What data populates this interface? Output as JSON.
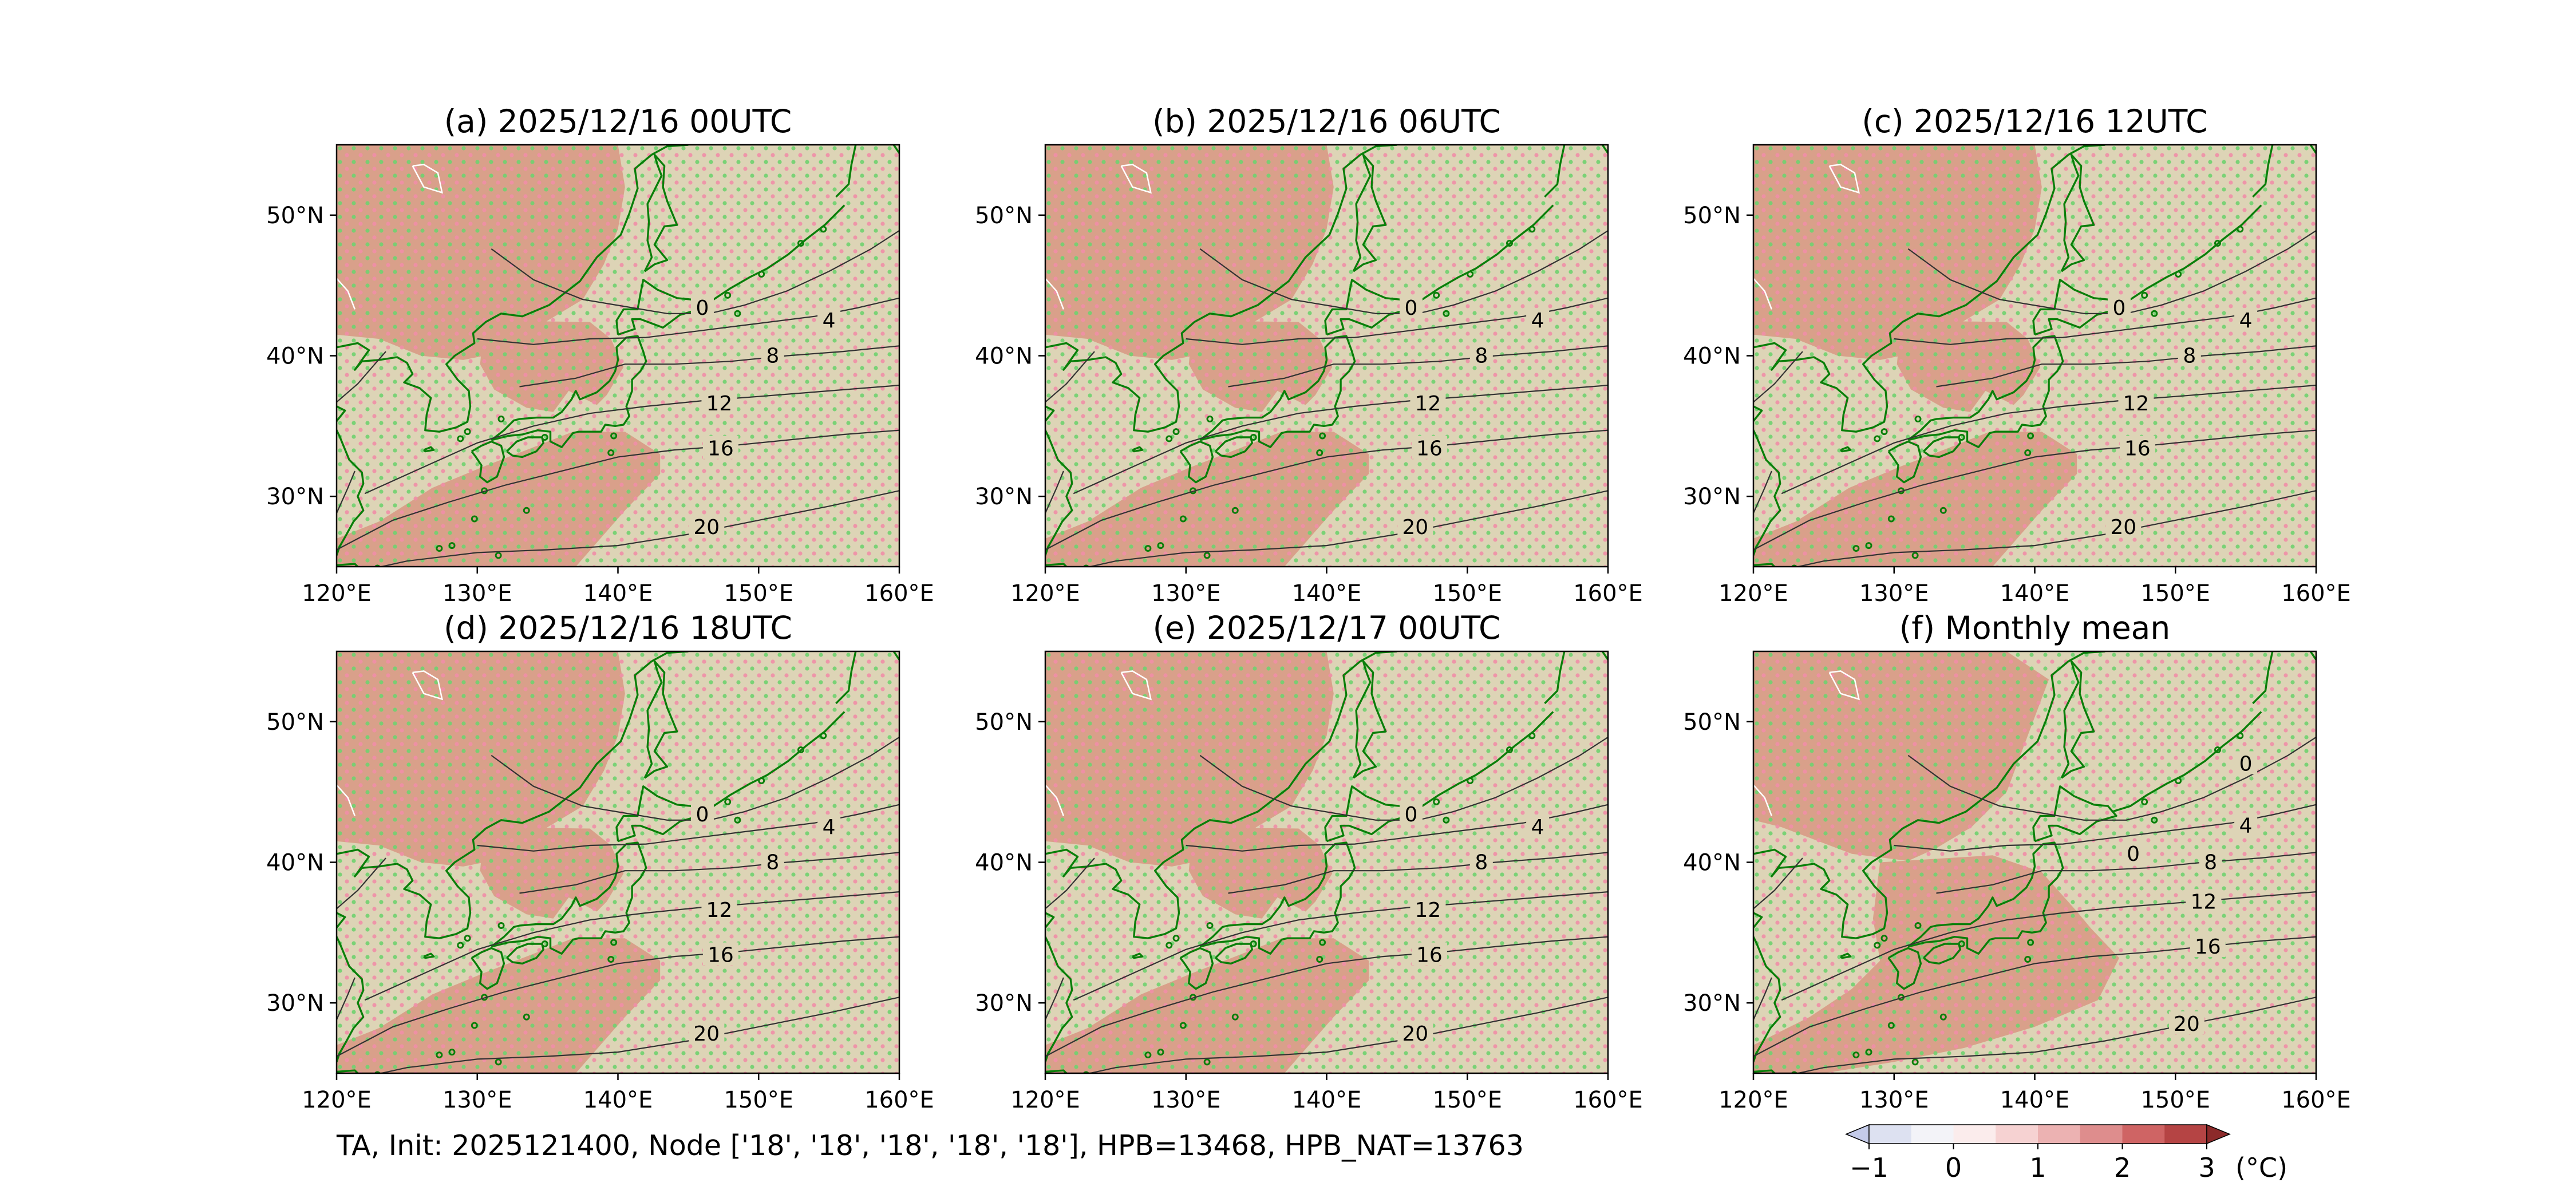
{
  "caption": "TA, Init: 2025121400, Node ['18', '18', '18', '18', '18'], HPB=13468, HPB_NAT=13763",
  "panels": [
    {
      "title": "(a) 2025/12/16 00UTC"
    },
    {
      "title": "(b) 2025/12/16 06UTC"
    },
    {
      "title": "(c) 2025/12/16 12UTC"
    },
    {
      "title": "(d) 2025/12/16 18UTC"
    },
    {
      "title": "(e) 2025/12/17 00UTC"
    },
    {
      "title": "(f) Monthly mean"
    }
  ],
  "axes": {
    "lon_ticks": [
      "120°E",
      "130°E",
      "140°E",
      "150°E",
      "160°E"
    ],
    "lat_ticks": [
      "50°N",
      "40°N",
      "30°N"
    ],
    "lon_range": [
      120,
      160
    ],
    "lat_range": [
      25,
      55
    ]
  },
  "contour_labels": {
    "main": [
      "0",
      "4",
      "8",
      "12",
      "16",
      "20"
    ],
    "monthly": [
      "0",
      "0",
      "4",
      "8",
      "12",
      "16",
      "20"
    ]
  },
  "colorbar": {
    "ticks": [
      "−1",
      "0",
      "1",
      "2",
      "3"
    ],
    "unit": "(°C)",
    "levels": [
      -1.5,
      -1,
      -0.5,
      0,
      0.5,
      1,
      1.5,
      2,
      2.5,
      3,
      3.5
    ],
    "colors": [
      "#c4cbe9",
      "#dde1f1",
      "#f3f3f8",
      "#fbecec",
      "#f6d2d2",
      "#ecb2b2",
      "#de8d8d",
      "#cf6464",
      "#b54444",
      "#8c2a2a"
    ]
  },
  "colors": {
    "positive_fill": "#d9a08a",
    "neutral_fill": "#ddd4b6",
    "stipple_a": "#6fd26f",
    "stipple_b": "#f08ea8",
    "coast": "#0a7f0a",
    "contour": "#333333"
  }
}
